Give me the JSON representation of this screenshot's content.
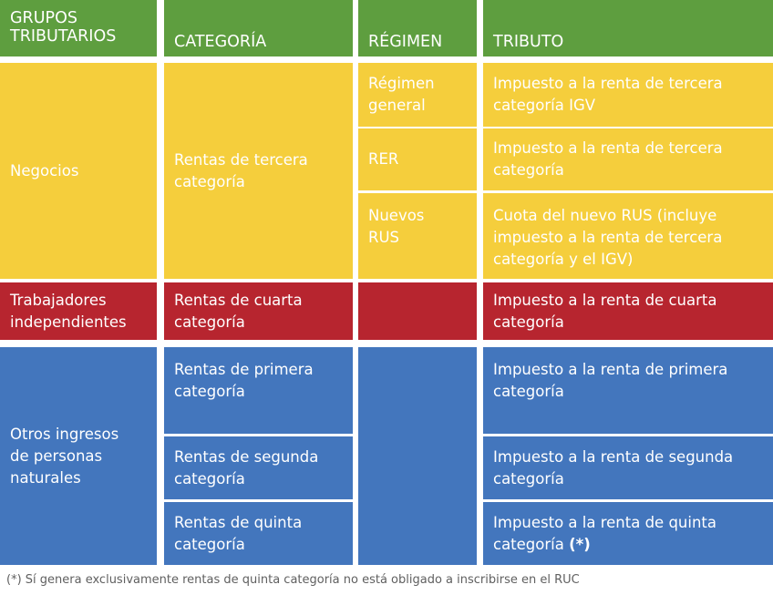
{
  "header": {
    "groups": "GRUPOS\nTRIBUTARIOS",
    "category": "CATEGORÍA",
    "regime": "RÉGIMEN",
    "tax": "TRIBUTO"
  },
  "rows": {
    "negocios": {
      "group": "Negocios",
      "category": "Rentas de tercera\ncategoría",
      "regimes": [
        {
          "regime": "Régimen\ngeneral",
          "tax": "Impuesto a la renta de tercera\ncategoría IGV"
        },
        {
          "regime": "RER",
          "tax": "Impuesto a la renta de tercera\ncategoría"
        },
        {
          "regime": "Nuevos\nRUS",
          "tax": "Cuota del nuevo RUS (incluye\nimpuesto a la renta de tercera\ncategoría y el IGV)"
        }
      ]
    },
    "trabajadores": {
      "group": "Trabajadores\nindependientes",
      "category": "Rentas de cuarta\ncategoría",
      "tax": "Impuesto a la renta de cuarta\ncategoría"
    },
    "otros": {
      "group": "Otros ingresos\nde personas\nnaturales",
      "items": [
        {
          "category": "Rentas de primera\ncategoría",
          "tax": "Impuesto a la renta de primera\ncategoría"
        },
        {
          "category": "Rentas de segunda\ncategoría",
          "tax": "Impuesto a la renta de segunda\ncategoría"
        },
        {
          "category": "Rentas de quinta\ncategoría",
          "tax_prefix": "Impuesto a la renta de quinta\ncategoría ",
          "tax_mark": "(*)"
        }
      ]
    }
  },
  "footnote": "(*) Sí genera exclusivamente rentas de quinta categoría no está obligado a inscribirse en el RUC",
  "colors": {
    "header": "#5e9e3f",
    "negocios": "#f5ce3c",
    "trabajadores": "#b7252f",
    "otros": "#4376bd",
    "footnote_text": "#606060"
  }
}
